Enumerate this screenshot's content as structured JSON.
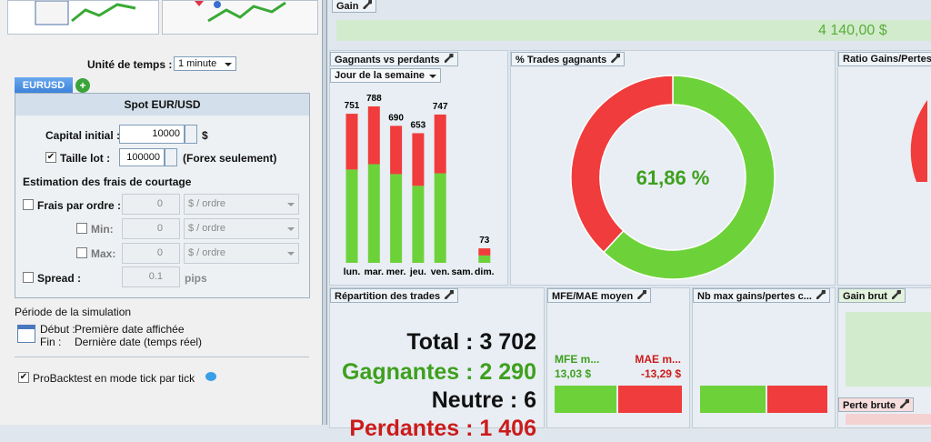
{
  "left_panel": {
    "time_unit_label": "Unité de temps :",
    "time_unit": "1 minute",
    "tab": "EURUSD",
    "box_title": "Spot EUR/USD",
    "capital_label": "Capital initial :",
    "capital": "10000",
    "capital_unit": "$",
    "lot_label": "Taille lot :",
    "lot": "100000",
    "lot_note": "(Forex seulement)",
    "fees_title": "Estimation des frais de courtage",
    "fee_per_order_label": "Frais par ordre :",
    "fee_per_order": "0",
    "fee_unit": "$ / ordre",
    "min_label": "Min:",
    "min": "0",
    "min_unit": "$ / ordre",
    "max_label": "Max:",
    "max": "0",
    "max_unit": "$ / ordre",
    "spread_label": "Spread :",
    "spread": "0.1",
    "spread_unit": "pips",
    "period_title": "Période de la simulation",
    "start_label": "Début :",
    "start": "Première date affichée",
    "end_label": "Fin :",
    "end": "Dernière date (temps réel)",
    "tick_mode": "ProBacktest en mode tick par tick"
  },
  "gain": {
    "title": "Gain",
    "value": "4 140,00 $"
  },
  "ratio_panel": {
    "title": "Ratio Gains/Pertes"
  },
  "distribution": {
    "title": "Répartition des trades",
    "total": "Total : 3 702",
    "winners": "Gagnantes : 2 290",
    "neutral": "Neutre : 6",
    "losers": "Perdantes : 1 406"
  },
  "mfe_mae": {
    "title": "MFE/MAE moyen",
    "mfe_label": "MFE m...",
    "mfe": "13,03 $",
    "mae_label": "MAE m...",
    "mae": "-13,29 $"
  },
  "max_streak": {
    "title": "Nb max gains/pertes c..."
  },
  "gross_gain": {
    "title": "Gain brut"
  },
  "gross_loss": {
    "title": "Perte brute"
  },
  "chart_data": [
    {
      "type": "bar",
      "stacked": true,
      "title": "Gagnants vs perdants",
      "selector": "Jour de la semaine",
      "categories": [
        "lun.",
        "mar.",
        "mer.",
        "jeu.",
        "ven.",
        "sam.",
        "dim."
      ],
      "series": [
        {
          "color": "#6dd23a",
          "values": [
            470,
            497,
            447,
            388,
            451,
            null,
            37
          ]
        },
        {
          "color": "#f03c3c",
          "values": [
            281,
            291,
            243,
            265,
            296,
            null,
            36
          ]
        }
      ],
      "totals": [
        751,
        788,
        690,
        653,
        747,
        null,
        73
      ]
    },
    {
      "type": "pie",
      "title": "% Trades gagnants",
      "values": [
        61.86,
        38.14
      ],
      "colors": [
        "#6dd23a",
        "#f03c3c"
      ],
      "value_labels": [
        "61,86 %",
        null
      ]
    }
  ]
}
